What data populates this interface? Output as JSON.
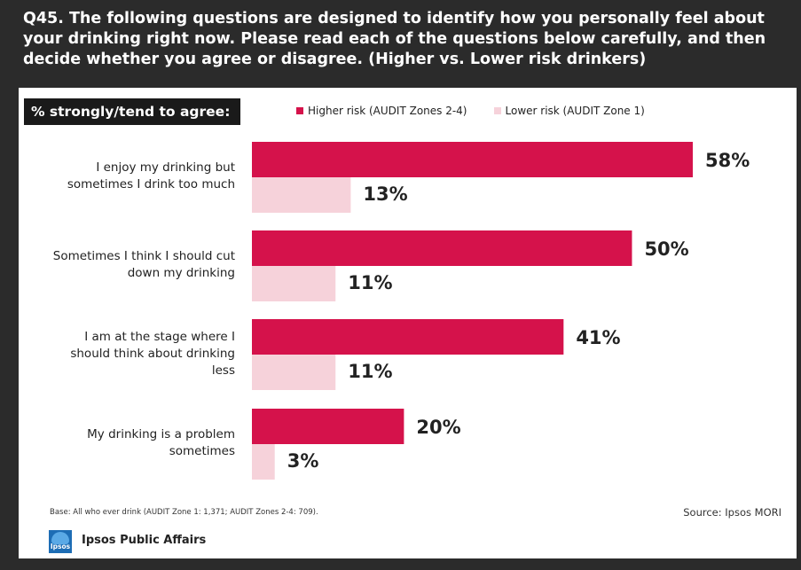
{
  "header": {
    "lines": [
      "Q45. The following questions are designed to identify how you personally feel about",
      "your drinking right now.  Please read each of the questions below carefully, and then",
      "decide whether you agree or disagree. (Higher vs. Lower risk drinkers)"
    ]
  },
  "tag": "% strongly/tend to agree:",
  "legend": {
    "higher": "Higher risk (AUDIT Zones 2-4)",
    "lower": "Lower risk (AUDIT Zone 1)"
  },
  "colors": {
    "higher": "#d5124b",
    "lower": "#f6d2da"
  },
  "chart_data": {
    "type": "bar",
    "orientation": "horizontal",
    "categories": [
      "I enjoy my drinking but sometimes I drink too much",
      "Sometimes I think I should cut down my drinking",
      "I am at the stage where I should think about drinking less",
      "My drinking is a problem sometimes"
    ],
    "category_lines": [
      [
        "I enjoy my drinking but",
        "sometimes I drink too much"
      ],
      [
        "Sometimes I think I should cut",
        "down my drinking"
      ],
      [
        "I am at the stage where I",
        "should think about drinking",
        "less"
      ],
      [
        "My drinking is a problem",
        "sometimes"
      ]
    ],
    "series": [
      {
        "name": "Higher risk (AUDIT Zones 2-4)",
        "values": [
          58,
          50,
          41,
          20
        ]
      },
      {
        "name": "Lower risk (AUDIT Zone 1)",
        "values": [
          13,
          11,
          11,
          3
        ]
      }
    ],
    "value_labels": [
      [
        "58%",
        "50%",
        "41%",
        "20%"
      ],
      [
        "13%",
        "11%",
        "11%",
        "3%"
      ]
    ],
    "xlim": [
      0,
      58
    ],
    "grid": false,
    "legend_position": "top"
  },
  "footer": {
    "base": "Base:  All who ever drink (AUDIT Zone 1: 1,371; AUDIT Zones 2-4: 709).",
    "source": "Source: Ipsos MORI",
    "logo_text": "Ipsos",
    "brand": "Ipsos Public Affairs"
  }
}
